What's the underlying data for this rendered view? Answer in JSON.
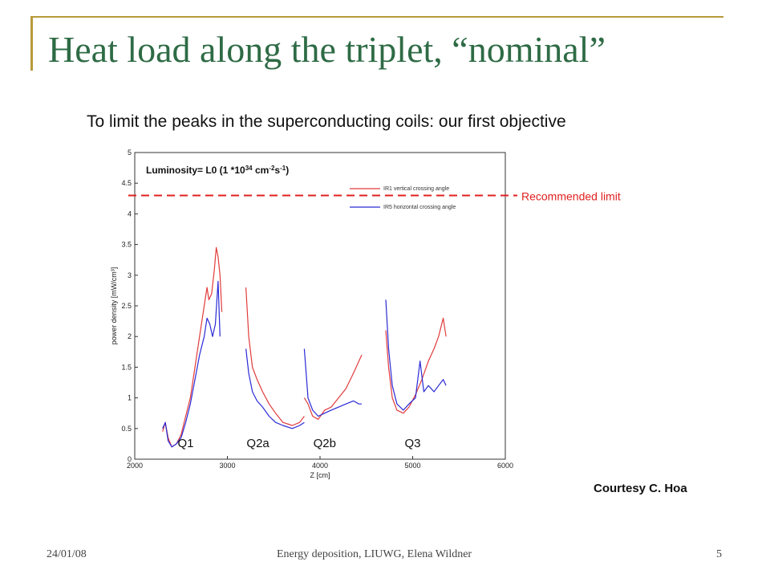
{
  "slide": {
    "title": "Heat load along the triplet, “nominal”",
    "subtitle": "To limit the peaks in the superconducting coils: our first objective",
    "courtesy": "Courtesy C. Hoa",
    "footer_left": "24/01/08",
    "footer_center": "Energy deposition, LIUWG, Elena Wildner",
    "footer_right": "5"
  },
  "colors": {
    "title": "#2e6b45",
    "accent_line": "#b89a3a",
    "limit": "#e0201f",
    "ir1": "#e23b3b",
    "ir5": "#2a2ad6"
  },
  "chart_data": {
    "type": "line",
    "xlabel": "Z [cm]",
    "ylabel": "power density [mW/cm³]",
    "xlim": [
      2000,
      6000
    ],
    "ylim": [
      0,
      5
    ],
    "xticks": [
      "2000",
      "3000",
      "4000",
      "5000",
      "6000"
    ],
    "yticks": [
      "0",
      "0.5",
      "1",
      "1.5",
      "2",
      "2.5",
      "3",
      "3.5",
      "4",
      "4.5",
      "5"
    ],
    "grid": false,
    "legend_position": "top-right",
    "luminosity_main": "Luminosity= L0 (1 *10",
    "luminosity_exp": "34",
    "luminosity_unit": " cm",
    "luminosity_unit_exp": "-2",
    "luminosity_s": "s",
    "luminosity_s_exp": "-1",
    "luminosity_close": ")",
    "recommended_limit": {
      "label": "Recommended limit",
      "value": 4.3
    },
    "regions": [
      {
        "label": "Q1",
        "x": 2550
      },
      {
        "label": "Q2a",
        "x": 3330
      },
      {
        "label": "Q2b",
        "x": 4050
      },
      {
        "label": "Q3",
        "x": 5000
      }
    ],
    "series": [
      {
        "name": "IR1 vertical crossing angle",
        "segments": [
          [
            [
              2300,
              0.45
            ],
            [
              2330,
              0.6
            ],
            [
              2360,
              0.35
            ],
            [
              2400,
              0.2
            ],
            [
              2450,
              0.25
            ],
            [
              2500,
              0.4
            ],
            [
              2550,
              0.7
            ],
            [
              2600,
              1.0
            ],
            [
              2650,
              1.5
            ],
            [
              2700,
              2.0
            ],
            [
              2750,
              2.5
            ],
            [
              2780,
              2.8
            ],
            [
              2800,
              2.6
            ],
            [
              2830,
              2.7
            ],
            [
              2860,
              3.1
            ],
            [
              2880,
              3.45
            ],
            [
              2900,
              3.3
            ],
            [
              2920,
              3.0
            ],
            [
              2940,
              2.4
            ]
          ],
          [
            [
              3200,
              2.8
            ],
            [
              3230,
              2.0
            ],
            [
              3270,
              1.5
            ],
            [
              3320,
              1.3
            ],
            [
              3380,
              1.1
            ],
            [
              3450,
              0.9
            ],
            [
              3520,
              0.75
            ],
            [
              3600,
              0.6
            ],
            [
              3700,
              0.55
            ],
            [
              3780,
              0.6
            ],
            [
              3830,
              0.7
            ]
          ],
          [
            [
              3830,
              1.0
            ],
            [
              3870,
              0.9
            ],
            [
              3920,
              0.7
            ],
            [
              3980,
              0.65
            ],
            [
              4050,
              0.8
            ],
            [
              4120,
              0.85
            ],
            [
              4200,
              1.0
            ],
            [
              4280,
              1.15
            ],
            [
              4360,
              1.4
            ],
            [
              4420,
              1.6
            ],
            [
              4450,
              1.7
            ]
          ],
          [
            [
              4710,
              2.1
            ],
            [
              4740,
              1.5
            ],
            [
              4780,
              1.0
            ],
            [
              4830,
              0.8
            ],
            [
              4900,
              0.75
            ],
            [
              4960,
              0.85
            ],
            [
              5030,
              1.05
            ],
            [
              5100,
              1.3
            ],
            [
              5170,
              1.6
            ],
            [
              5230,
              1.8
            ],
            [
              5280,
              2.0
            ],
            [
              5330,
              2.3
            ],
            [
              5360,
              2.0
            ]
          ]
        ]
      },
      {
        "name": "IR5 horizontal crossing angle",
        "segments": [
          [
            [
              2300,
              0.5
            ],
            [
              2330,
              0.6
            ],
            [
              2360,
              0.3
            ],
            [
              2400,
              0.2
            ],
            [
              2450,
              0.25
            ],
            [
              2500,
              0.35
            ],
            [
              2550,
              0.6
            ],
            [
              2600,
              0.9
            ],
            [
              2650,
              1.3
            ],
            [
              2700,
              1.7
            ],
            [
              2750,
              2.0
            ],
            [
              2780,
              2.3
            ],
            [
              2810,
              2.2
            ],
            [
              2840,
              2.0
            ],
            [
              2870,
              2.2
            ],
            [
              2900,
              2.9
            ],
            [
              2920,
              2.0
            ]
          ],
          [
            [
              3200,
              1.8
            ],
            [
              3230,
              1.4
            ],
            [
              3270,
              1.1
            ],
            [
              3320,
              0.95
            ],
            [
              3380,
              0.85
            ],
            [
              3450,
              0.7
            ],
            [
              3520,
              0.6
            ],
            [
              3600,
              0.55
            ],
            [
              3700,
              0.5
            ],
            [
              3780,
              0.55
            ],
            [
              3830,
              0.6
            ]
          ],
          [
            [
              3830,
              1.8
            ],
            [
              3870,
              1.0
            ],
            [
              3920,
              0.8
            ],
            [
              3980,
              0.7
            ],
            [
              4050,
              0.75
            ],
            [
              4120,
              0.8
            ],
            [
              4200,
              0.85
            ],
            [
              4280,
              0.9
            ],
            [
              4360,
              0.95
            ],
            [
              4420,
              0.9
            ],
            [
              4450,
              0.9
            ]
          ],
          [
            [
              4710,
              2.6
            ],
            [
              4740,
              1.8
            ],
            [
              4780,
              1.2
            ],
            [
              4830,
              0.9
            ],
            [
              4900,
              0.8
            ],
            [
              4960,
              0.9
            ],
            [
              5030,
              1.0
            ],
            [
              5080,
              1.6
            ],
            [
              5120,
              1.1
            ],
            [
              5170,
              1.2
            ],
            [
              5230,
              1.1
            ],
            [
              5280,
              1.2
            ],
            [
              5330,
              1.3
            ],
            [
              5360,
              1.2
            ]
          ]
        ]
      }
    ]
  }
}
